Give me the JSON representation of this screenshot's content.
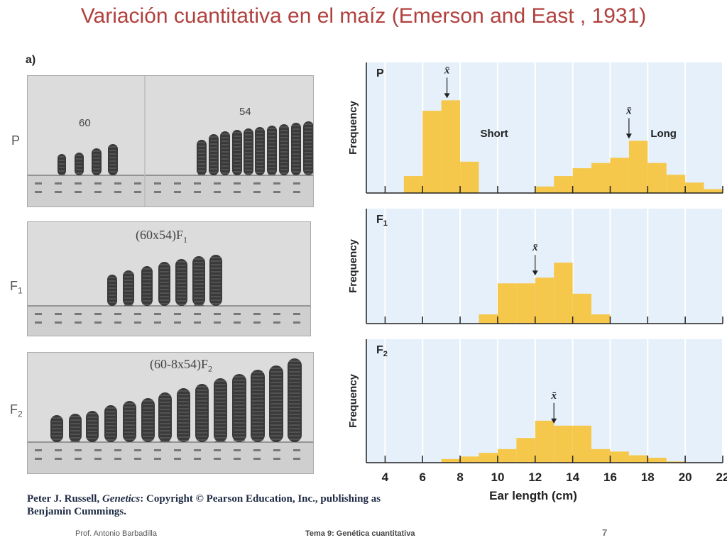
{
  "slide": {
    "title": "Variación cuantitativa en el maíz (Emerson and East , 1931)",
    "panel_label": "a)",
    "generations": {
      "p": "P",
      "f1": "F",
      "f1_sub": "1",
      "f2": "F",
      "f2_sub": "2"
    },
    "photo_labels": {
      "p_short": "60",
      "p_long": "54",
      "f1": "(60x54)F",
      "f1_sub": "1",
      "f2": "(60-8x54)F",
      "f2_sub": "2"
    },
    "citation": {
      "author": "Peter J. Russell, ",
      "book": "Genetics",
      "rest": ": Copyright © Pearson Education, Inc., publishing as Benjamin Cummings."
    },
    "footer": {
      "author": "Prof. Antonio Barbadilla",
      "topic": "Tema 9: Genética cuantitativa",
      "page": "7"
    }
  },
  "colors": {
    "bar": "#f5c84c",
    "plot_bg": "#e5f0fb",
    "title": "#b0413e"
  },
  "chart_data": [
    {
      "type": "bar",
      "panel": "P",
      "ylabel": "Frequency",
      "xlabel": "",
      "xlim": [
        3,
        22
      ],
      "mean_symbol": "x̄",
      "series": [
        {
          "name": "Short",
          "mean": 7.3,
          "bins": [
            [
              5,
              6,
              0.13
            ],
            [
              6,
              7,
              0.63
            ],
            [
              7,
              8,
              0.71
            ],
            [
              8,
              9,
              0.24
            ]
          ]
        },
        {
          "name": "Long",
          "mean": 17.0,
          "bins": [
            [
              12,
              13,
              0.05
            ],
            [
              13,
              14,
              0.13
            ],
            [
              14,
              15,
              0.19
            ],
            [
              15,
              16,
              0.23
            ],
            [
              16,
              17,
              0.27
            ],
            [
              17,
              18,
              0.4
            ],
            [
              18,
              19,
              0.23
            ],
            [
              19,
              20,
              0.14
            ],
            [
              20,
              21,
              0.08
            ],
            [
              21,
              22,
              0.03
            ]
          ]
        }
      ]
    },
    {
      "type": "bar",
      "panel": "F",
      "panel_sub": "1",
      "ylabel": "Frequency",
      "xlabel": "",
      "xlim": [
        3,
        22
      ],
      "mean_symbol": "x̄",
      "series": [
        {
          "name": "",
          "mean": 12.0,
          "bins": [
            [
              9,
              10,
              0.08
            ],
            [
              10,
              11,
              0.35
            ],
            [
              11,
              12,
              0.35
            ],
            [
              12,
              13,
              0.4
            ],
            [
              13,
              14,
              0.53
            ],
            [
              14,
              15,
              0.26
            ],
            [
              15,
              16,
              0.08
            ]
          ]
        }
      ]
    },
    {
      "type": "bar",
      "panel": "F",
      "panel_sub": "2",
      "ylabel": "Frequency",
      "xlabel": "Ear length (cm)",
      "xlim": [
        3,
        22
      ],
      "xticks": [
        4,
        6,
        8,
        10,
        12,
        14,
        16,
        18,
        20,
        22
      ],
      "mean_symbol": "x̄",
      "series": [
        {
          "name": "",
          "mean": 13.0,
          "bins": [
            [
              7,
              8,
              0.03
            ],
            [
              8,
              9,
              0.05
            ],
            [
              9,
              10,
              0.08
            ],
            [
              10,
              11,
              0.11
            ],
            [
              11,
              12,
              0.2
            ],
            [
              12,
              13,
              0.34
            ],
            [
              13,
              14,
              0.3
            ],
            [
              14,
              15,
              0.3
            ],
            [
              15,
              16,
              0.11
            ],
            [
              16,
              17,
              0.09
            ],
            [
              17,
              18,
              0.06
            ],
            [
              18,
              19,
              0.04
            ],
            [
              19,
              20,
              0.01
            ]
          ]
        }
      ]
    }
  ]
}
